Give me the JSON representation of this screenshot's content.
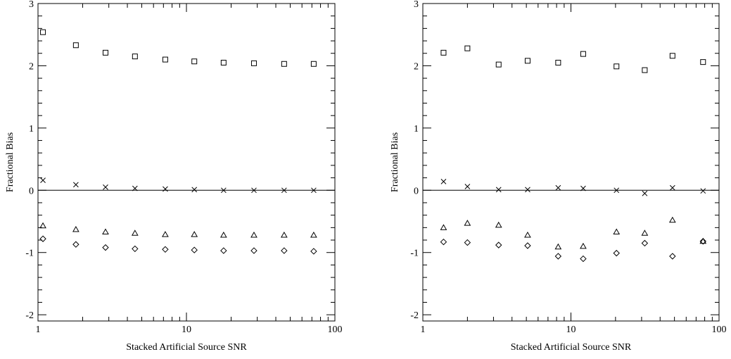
{
  "chart_data": [
    {
      "type": "scatter",
      "xlabel": "Stacked Artificial Source SNR",
      "ylabel": "Fractional Bias",
      "xscale": "log",
      "xlim": [
        1,
        100
      ],
      "ylim": [
        -2.1,
        3
      ],
      "x_ticks": [
        "1",
        "10",
        "100"
      ],
      "y_ticks": [
        "-2",
        "-1",
        "0",
        "1",
        "2",
        "3"
      ],
      "reference_line": 0,
      "grid": false,
      "series": [
        {
          "marker": "square",
          "x": [
            1.08,
            1.8,
            2.85,
            4.5,
            7.2,
            11.3,
            17.8,
            28.5,
            45.5,
            72.0
          ],
          "y": [
            2.54,
            2.33,
            2.21,
            2.15,
            2.1,
            2.07,
            2.05,
            2.04,
            2.03,
            2.03
          ]
        },
        {
          "marker": "cross",
          "x": [
            1.08,
            1.8,
            2.85,
            4.5,
            7.2,
            11.3,
            17.8,
            28.5,
            45.5,
            72.0
          ],
          "y": [
            0.16,
            0.09,
            0.05,
            0.03,
            0.02,
            0.01,
            0.0,
            0.0,
            0.0,
            0.0
          ]
        },
        {
          "marker": "triangle",
          "x": [
            1.08,
            1.8,
            2.85,
            4.5,
            7.2,
            11.3,
            17.8,
            28.5,
            45.5,
            72.0
          ],
          "y": [
            -0.57,
            -0.63,
            -0.67,
            -0.69,
            -0.71,
            -0.71,
            -0.72,
            -0.72,
            -0.72,
            -0.72
          ]
        },
        {
          "marker": "diamond",
          "x": [
            1.08,
            1.8,
            2.85,
            4.5,
            7.2,
            11.3,
            17.8,
            28.5,
            45.5,
            72.0
          ],
          "y": [
            -0.78,
            -0.87,
            -0.92,
            -0.94,
            -0.95,
            -0.96,
            -0.97,
            -0.97,
            -0.97,
            -0.98
          ]
        }
      ]
    },
    {
      "type": "scatter",
      "xlabel": "Stacked Artificial Source SNR",
      "ylabel": "Fractional Bias",
      "xscale": "log",
      "xlim": [
        1,
        100
      ],
      "ylim": [
        -2.1,
        3
      ],
      "x_ticks": [
        "1",
        "10",
        "100"
      ],
      "y_ticks": [
        "-2",
        "-1",
        "0",
        "1",
        "2",
        "3"
      ],
      "reference_line": 0,
      "grid": false,
      "series": [
        {
          "marker": "square",
          "x": [
            1.38,
            2.0,
            3.25,
            5.1,
            8.2,
            12.1,
            20.3,
            31.5,
            48.5,
            78.0
          ],
          "y": [
            2.21,
            2.28,
            2.02,
            2.08,
            2.05,
            2.19,
            1.99,
            1.93,
            2.16,
            2.06
          ]
        },
        {
          "marker": "cross",
          "x": [
            1.38,
            2.0,
            3.25,
            5.1,
            8.2,
            12.1,
            20.3,
            31.5,
            48.5,
            78.0
          ],
          "y": [
            0.14,
            0.06,
            0.01,
            0.01,
            0.04,
            0.03,
            0.0,
            -0.05,
            0.04,
            -0.01
          ]
        },
        {
          "marker": "triangle",
          "x": [
            1.38,
            2.0,
            3.25,
            5.1,
            8.2,
            12.1,
            20.3,
            31.5,
            48.5,
            78.0
          ],
          "y": [
            -0.6,
            -0.53,
            -0.56,
            -0.72,
            -0.91,
            -0.9,
            -0.67,
            -0.69,
            -0.48,
            -0.82
          ]
        },
        {
          "marker": "diamond",
          "x": [
            1.38,
            2.0,
            3.25,
            5.1,
            8.2,
            12.1,
            20.3,
            31.5,
            48.5,
            78.0
          ],
          "y": [
            -0.83,
            -0.84,
            -0.88,
            -0.89,
            -1.06,
            -1.1,
            -1.01,
            -0.85,
            -1.06,
            -0.82
          ]
        }
      ]
    }
  ]
}
